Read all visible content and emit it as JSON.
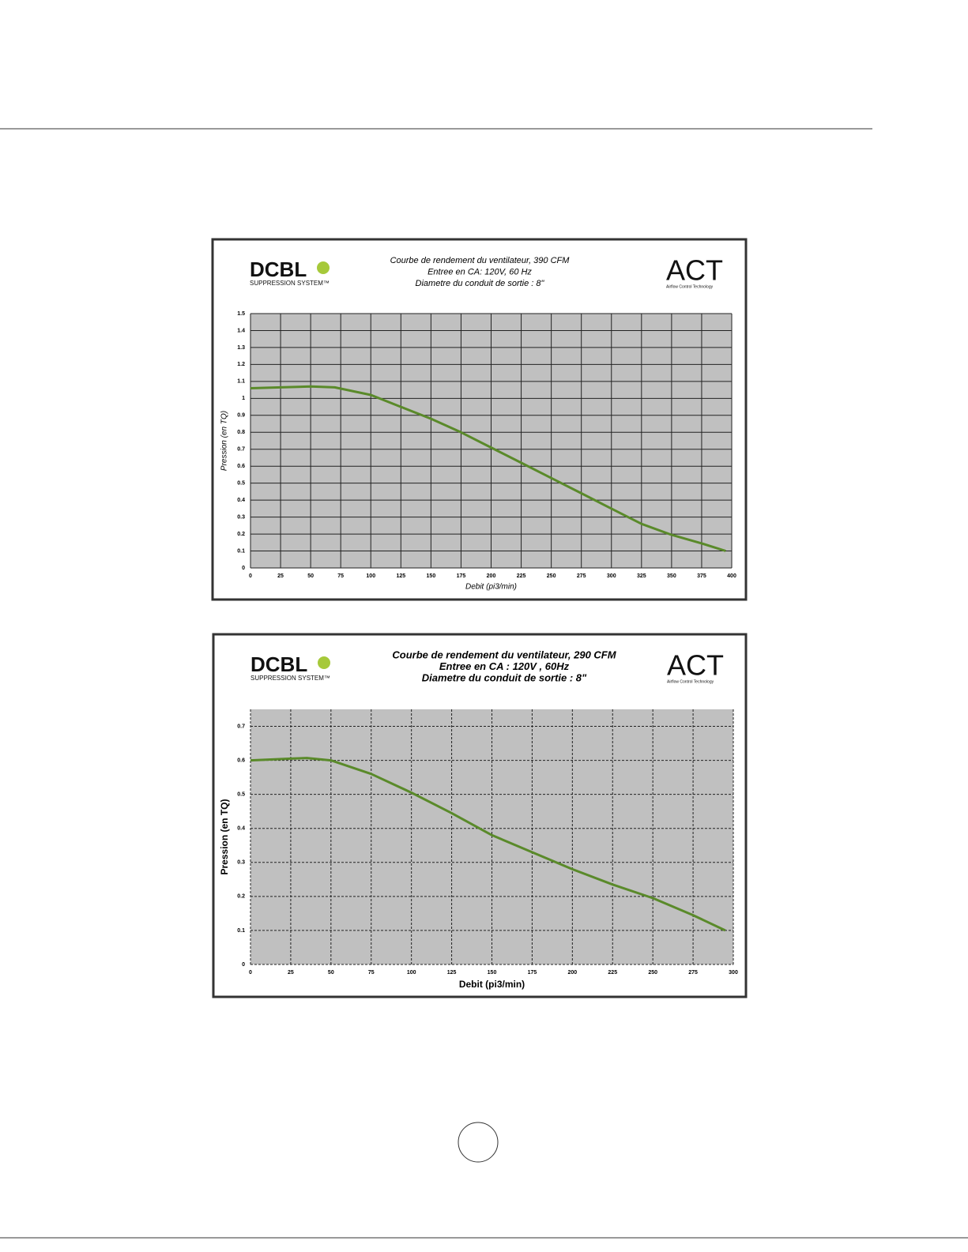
{
  "logo": {
    "brand": "DCBL",
    "brand_sub": "SUPPRESSION SYSTEM™",
    "maker": "ACT",
    "maker_sub": "Airflow Control Technology"
  },
  "chart_data": [
    {
      "type": "line",
      "title": [
        "Courbe de rendement du ventilateur, 390 CFM",
        "Entree en CA: 120V, 60 Hz",
        "Diametre du conduit de sortie : 8\""
      ],
      "x_label": "Debit (pi3/min)",
      "y_label": "Pression (en TQ)",
      "xlim": [
        0,
        400
      ],
      "xticks": [
        0,
        25,
        50,
        75,
        100,
        125,
        150,
        175,
        200,
        225,
        250,
        275,
        300,
        325,
        350,
        375,
        400
      ],
      "ylim": [
        0,
        1.5
      ],
      "yticks": [
        0,
        0.1,
        0.2,
        0.3,
        0.4,
        0.5,
        0.6,
        0.7,
        0.8,
        0.9,
        1,
        1.1,
        1.2,
        1.3,
        1.4,
        1.5
      ],
      "grid": true,
      "grid_style": "solid",
      "font_weight": "normal",
      "series": [
        {
          "color": "#5a8a2a",
          "x": [
            0,
            25,
            50,
            70,
            100,
            125,
            150,
            175,
            200,
            225,
            250,
            275,
            300,
            325,
            350,
            375,
            395
          ],
          "values": [
            1.06,
            1.065,
            1.07,
            1.065,
            1.02,
            0.95,
            0.88,
            0.8,
            0.71,
            0.62,
            0.53,
            0.44,
            0.35,
            0.26,
            0.195,
            0.145,
            0.1
          ]
        }
      ]
    },
    {
      "type": "line",
      "title": [
        "Courbe de rendement du ventilateur, 290 CFM",
        "Entree en CA : 120V , 60Hz",
        "Diametre du conduit de sortie : 8\""
      ],
      "x_label": "Debit (pi3/min)",
      "y_label": "Pression (en TQ)",
      "xlim": [
        0,
        300
      ],
      "xticks": [
        0,
        25,
        50,
        75,
        100,
        125,
        150,
        175,
        200,
        225,
        250,
        275,
        300
      ],
      "ylim": [
        0,
        0.75
      ],
      "yticks": [
        0,
        0.1,
        0.2,
        0.3,
        0.4,
        0.5,
        0.6,
        0.7
      ],
      "grid": true,
      "grid_style": "dashed",
      "font_weight": "bold",
      "series": [
        {
          "color": "#5a8a2a",
          "x": [
            0,
            25,
            35,
            50,
            75,
            100,
            125,
            150,
            175,
            200,
            225,
            250,
            275,
            295
          ],
          "values": [
            0.6,
            0.605,
            0.607,
            0.6,
            0.56,
            0.505,
            0.445,
            0.38,
            0.33,
            0.28,
            0.235,
            0.195,
            0.145,
            0.1
          ]
        }
      ]
    }
  ]
}
